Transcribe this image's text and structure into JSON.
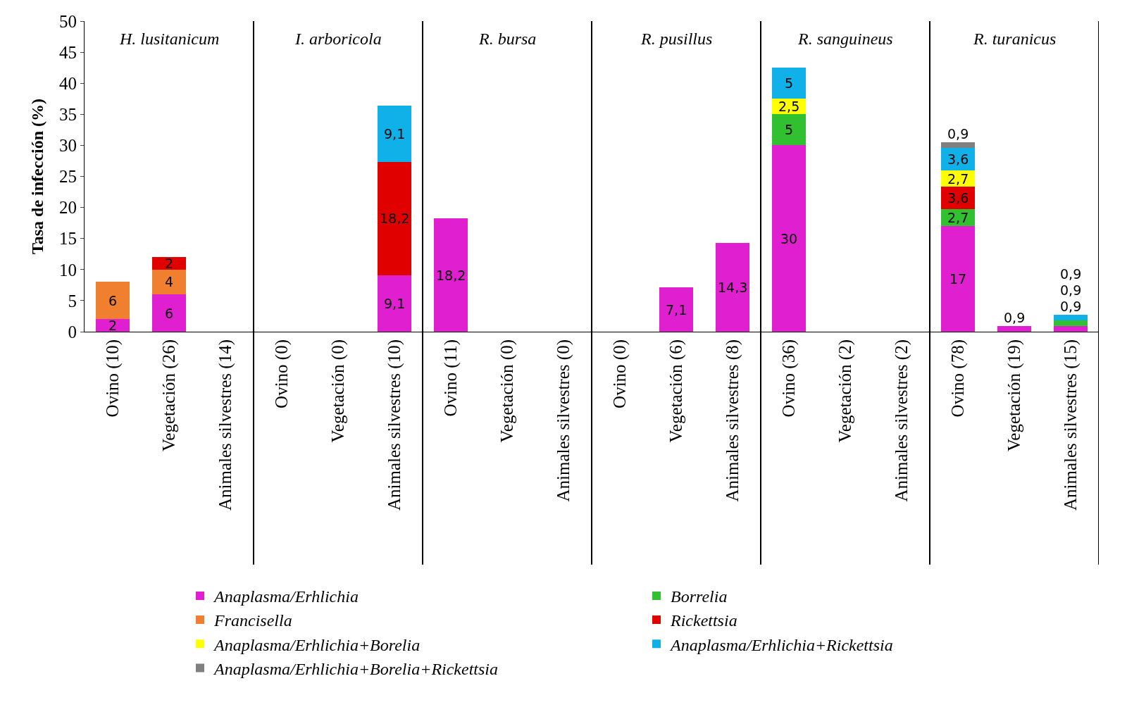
{
  "chart_data": {
    "type": "bar",
    "stacked": true,
    "ylabel": "Tasa de infección (%)",
    "ylim": [
      0,
      50
    ],
    "yticks": [
      0,
      5,
      10,
      15,
      20,
      25,
      30,
      35,
      40,
      45,
      50
    ],
    "legend": "bottom",
    "categories": [
      "Ovino (10)",
      "Vegetación (26)",
      "Animales silvestres (14)",
      "Ovino (0)",
      "Vegetación (0)",
      "Animales silvestres (10)",
      "Ovino (11)",
      "Vegetación (0)",
      "Animales silvestres (0)",
      "Ovino (0)",
      "Vegetación (6)",
      "Animales silvestres (8)",
      "Ovino (36)",
      "Vegetación (2)",
      "Animales silvestres (2)",
      "Ovino (78)",
      "Vegetación (19)",
      "Animales silvestres (15)"
    ],
    "annotations": [
      "H. lusitanicum",
      "I. arboricola",
      "R. bursa",
      "R. pusillus",
      "R. sanguineus",
      "R. turanicus"
    ],
    "series": [
      {
        "name": "Anaplasma/Erhlichia",
        "color": "#e020d0",
        "values": [
          2,
          6,
          null,
          null,
          null,
          9.1,
          18.2,
          null,
          null,
          null,
          7.1,
          14.3,
          30,
          null,
          null,
          17,
          0.9,
          0.9
        ],
        "value_labels": [
          "2",
          "6",
          null,
          null,
          null,
          "9,1",
          "18,2",
          null,
          null,
          null,
          "7,1",
          "14,3",
          "30",
          null,
          null,
          "17",
          "0,9",
          "0,9"
        ]
      },
      {
        "name": "Borrelia",
        "color": "#30c030",
        "values": [
          null,
          null,
          null,
          null,
          null,
          null,
          null,
          null,
          null,
          null,
          null,
          null,
          5,
          null,
          null,
          2.7,
          null,
          0.9
        ],
        "value_labels": [
          null,
          null,
          null,
          null,
          null,
          null,
          null,
          null,
          null,
          null,
          null,
          null,
          "5",
          null,
          null,
          "2,7",
          null,
          "0,9"
        ]
      },
      {
        "name": "Francisella",
        "color": "#f08030",
        "values": [
          6,
          4,
          null,
          null,
          null,
          null,
          null,
          null,
          null,
          null,
          null,
          null,
          null,
          null,
          null,
          null,
          null,
          null
        ],
        "value_labels": [
          "6",
          "4",
          null,
          null,
          null,
          null,
          null,
          null,
          null,
          null,
          null,
          null,
          null,
          null,
          null,
          null,
          null,
          null
        ]
      },
      {
        "name": "Rickettsia",
        "color": "#e00000",
        "values": [
          null,
          2,
          null,
          null,
          null,
          18.2,
          null,
          null,
          null,
          null,
          null,
          null,
          null,
          null,
          null,
          3.6,
          null,
          null
        ],
        "value_labels": [
          null,
          "2",
          null,
          null,
          null,
          "18,2",
          null,
          null,
          null,
          null,
          null,
          null,
          null,
          null,
          null,
          "3,6",
          null,
          null
        ]
      },
      {
        "name": "Anaplasma/Erhlichia+Borelia",
        "color": "#ffff00",
        "values": [
          null,
          null,
          null,
          null,
          null,
          null,
          null,
          null,
          null,
          null,
          null,
          null,
          2.5,
          null,
          null,
          2.7,
          null,
          null
        ],
        "value_labels": [
          null,
          null,
          null,
          null,
          null,
          null,
          null,
          null,
          null,
          null,
          null,
          null,
          "2,5",
          null,
          null,
          "2,7",
          null,
          null
        ]
      },
      {
        "name": "Anaplasma/Erhlichia+Rickettsia",
        "color": "#10b0e8",
        "values": [
          null,
          null,
          null,
          null,
          null,
          9.1,
          null,
          null,
          null,
          null,
          null,
          null,
          5,
          null,
          null,
          3.6,
          null,
          0.9
        ],
        "value_labels": [
          null,
          null,
          null,
          null,
          null,
          "9,1",
          null,
          null,
          null,
          null,
          null,
          null,
          "5",
          null,
          null,
          "3,6",
          null,
          "0,9"
        ]
      },
      {
        "name": "Anaplasma/Erhlichia+Borelia+Rickettsia",
        "color": "#808080",
        "values": [
          null,
          null,
          null,
          null,
          null,
          null,
          null,
          null,
          null,
          null,
          null,
          null,
          null,
          null,
          null,
          0.9,
          null,
          null
        ],
        "value_labels": [
          null,
          null,
          null,
          null,
          null,
          null,
          null,
          null,
          null,
          null,
          null,
          null,
          null,
          null,
          null,
          "0,9",
          null,
          null
        ]
      }
    ]
  }
}
